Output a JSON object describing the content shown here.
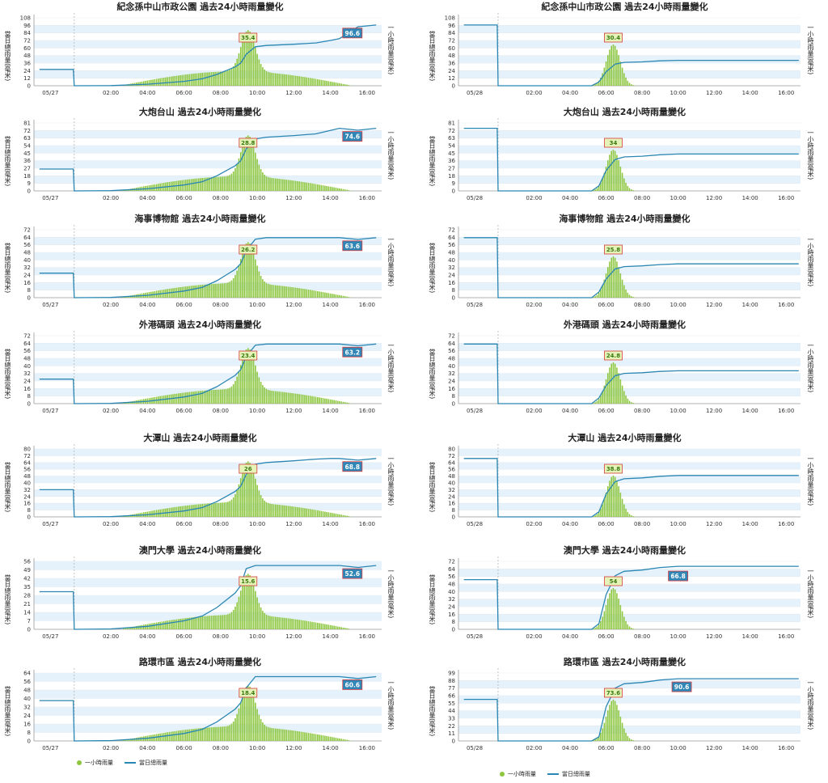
{
  "colors": {
    "bar": "#8dc63f",
    "line": "#2a86b3",
    "band": "#e6f2fb",
    "label_green_bg": "#e6f3b8",
    "label_green_border": "#d83c3c",
    "label_blue_bg": "#2f86b7"
  },
  "legend": {
    "bar": "一小時雨量",
    "line": "當日總雨量"
  },
  "axis": {
    "left": "當日總雨量(毫米)",
    "right": "一小時雨量(毫米)"
  },
  "charts": [
    {
      "title": "紀念孫中山市政公園 過去24小時雨量變化",
      "date": "05/27",
      "yticks": [
        0,
        12,
        24,
        36,
        48,
        60,
        72,
        84,
        96,
        108
      ],
      "xticks": [
        "02:00",
        "04:00",
        "06:00",
        "08:00",
        "10:00",
        "12:00",
        "14:00",
        "16:00"
      ],
      "peak_bar": 35.4,
      "total": 96.6,
      "prev_total": 26
    },
    {
      "title": "紀念孫中山市政公園 過去24小時雨量變化",
      "date": "05/28",
      "yticks": [
        0,
        12,
        24,
        36,
        48,
        60,
        72,
        84,
        96,
        108
      ],
      "xticks": [
        "02:00",
        "04:00",
        "06:00",
        "08:00",
        "10:00",
        "12:00",
        "14:00",
        "16:00"
      ],
      "peak_bar": 30.4,
      "total": null,
      "prev_total": 96.6
    },
    {
      "title": "大炮台山 過去24小時雨量變化",
      "date": "05/27",
      "yticks": [
        0,
        9,
        18,
        27,
        36,
        45,
        54,
        63,
        72,
        81
      ],
      "xticks": [
        "02:00",
        "04:00",
        "06:00",
        "08:00",
        "10:00",
        "12:00",
        "14:00",
        "16:00"
      ],
      "peak_bar": 28.8,
      "total": 74.6,
      "prev_total": 26
    },
    {
      "title": "大炮台山 過去24小時雨量變化",
      "date": "05/28",
      "yticks": [
        0,
        9,
        18,
        27,
        36,
        45,
        54,
        63,
        72,
        81
      ],
      "xticks": [
        "02:00",
        "04:00",
        "06:00",
        "08:00",
        "10:00",
        "12:00",
        "14:00",
        "16:00"
      ],
      "peak_bar": 34,
      "total": null,
      "prev_total": 74.6
    },
    {
      "title": "海事博物館 過去24小時雨量變化",
      "date": "05/27",
      "yticks": [
        0,
        8,
        16,
        24,
        32,
        40,
        48,
        56,
        64,
        72
      ],
      "xticks": [
        "02:00",
        "04:00",
        "06:00",
        "08:00",
        "10:00",
        "12:00",
        "14:00",
        "16:00"
      ],
      "peak_bar": 26.2,
      "total": 63.6,
      "prev_total": 26
    },
    {
      "title": "海事博物館 過去24小時雨量變化",
      "date": "05/28",
      "yticks": [
        0,
        8,
        16,
        24,
        32,
        40,
        48,
        56,
        64,
        72
      ],
      "xticks": [
        "02:00",
        "04:00",
        "06:00",
        "08:00",
        "10:00",
        "12:00",
        "14:00",
        "16:00"
      ],
      "peak_bar": 25.8,
      "total": null,
      "prev_total": 63.6
    },
    {
      "title": "外港碼頭 過去24小時雨量變化",
      "date": "05/27",
      "yticks": [
        0,
        8,
        16,
        24,
        32,
        40,
        48,
        56,
        64,
        72
      ],
      "xticks": [
        "02:00",
        "04:00",
        "06:00",
        "08:00",
        "10:00",
        "12:00",
        "14:00",
        "16:00"
      ],
      "peak_bar": 23.4,
      "total": 63.2,
      "prev_total": 26
    },
    {
      "title": "外港碼頭 過去24小時雨量變化",
      "date": "05/28",
      "yticks": [
        0,
        8,
        16,
        24,
        32,
        40,
        48,
        56,
        64,
        72
      ],
      "xticks": [
        "02:00",
        "04:00",
        "06:00",
        "08:00",
        "10:00",
        "12:00",
        "14:00",
        "16:00"
      ],
      "peak_bar": 24.8,
      "total": null,
      "prev_total": 63.2
    },
    {
      "title": "大潭山 過去24小時雨量變化",
      "date": "05/27",
      "yticks": [
        0,
        8,
        16,
        24,
        32,
        40,
        48,
        56,
        64,
        72,
        80
      ],
      "xticks": [
        "02:00",
        "04:00",
        "06:00",
        "08:00",
        "10:00",
        "12:00",
        "14:00",
        "16:00"
      ],
      "peak_bar": 26,
      "total": 68.8,
      "prev_total": 32
    },
    {
      "title": "大潭山 過去24小時雨量變化",
      "date": "05/28",
      "yticks": [
        0,
        8,
        16,
        24,
        32,
        40,
        48,
        56,
        64,
        72,
        80
      ],
      "xticks": [
        "02:00",
        "04:00",
        "06:00",
        "08:00",
        "10:00",
        "12:00",
        "14:00",
        "16:00"
      ],
      "peak_bar": 38.8,
      "total": null,
      "prev_total": 68.8
    },
    {
      "title": "澳門大學 過去24小時雨量變化",
      "date": "05/27",
      "yticks": [
        0,
        7,
        14,
        21,
        28,
        35,
        42,
        49,
        56
      ],
      "xticks": [
        "02:00",
        "04:00",
        "06:00",
        "08:00",
        "10:00",
        "12:00",
        "14:00",
        "16:00"
      ],
      "peak_bar": 15.6,
      "total": 52.6,
      "prev_total": 31
    },
    {
      "title": "澳門大學 過去24小時雨量變化",
      "date": "05/28",
      "yticks": [
        0,
        8,
        16,
        24,
        32,
        40,
        48,
        56,
        64,
        72
      ],
      "xticks": [
        "02:00",
        "04:00",
        "06:00",
        "08:00",
        "10:00",
        "12:00",
        "14:00",
        "16:00"
      ],
      "peak_bar": 54,
      "total": 66.8,
      "prev_total": 52.6
    },
    {
      "title": "路環市區 過去24小時雨量變化",
      "date": "05/27",
      "yticks": [
        0,
        8,
        16,
        24,
        32,
        40,
        48,
        56,
        64
      ],
      "xticks": [
        "02:00",
        "04:00",
        "06:00",
        "08:00",
        "10:00",
        "12:00",
        "14:00",
        "16:00"
      ],
      "peak_bar": 18.4,
      "total": 60.6,
      "prev_total": 38
    },
    {
      "title": "路環市區 過去24小時雨量變化",
      "date": "05/28",
      "yticks": [
        0,
        11,
        22,
        33,
        44,
        55,
        66,
        77,
        88,
        99
      ],
      "xticks": [
        "02:00",
        "04:00",
        "06:00",
        "08:00",
        "10:00",
        "12:00",
        "14:00",
        "16:00"
      ],
      "peak_bar": 73.6,
      "total": 90.6,
      "prev_total": 60.6
    }
  ]
}
